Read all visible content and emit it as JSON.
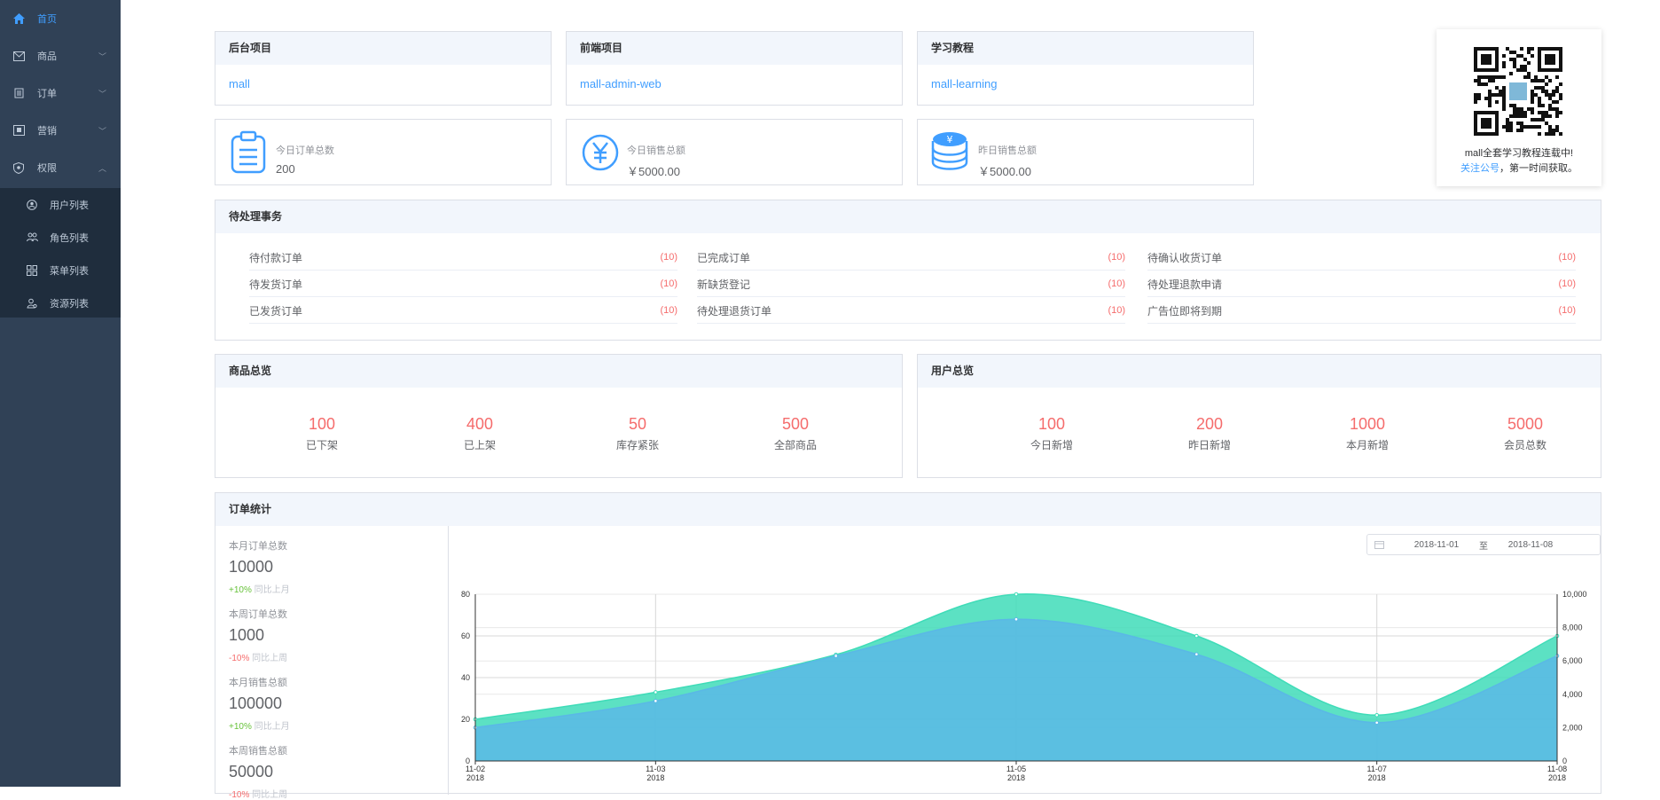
{
  "sidebar": {
    "items": [
      {
        "label": "首页",
        "icon": "home-icon",
        "active": true
      },
      {
        "label": "商品",
        "icon": "product-icon",
        "expanded": false
      },
      {
        "label": "订单",
        "icon": "order-icon",
        "expanded": false
      },
      {
        "label": "营销",
        "icon": "marketing-icon",
        "expanded": false
      },
      {
        "label": "权限",
        "icon": "permission-icon",
        "expanded": true
      }
    ],
    "sub_items": [
      {
        "label": "用户列表",
        "icon": "user-icon"
      },
      {
        "label": "角色列表",
        "icon": "role-icon"
      },
      {
        "label": "菜单列表",
        "icon": "menu-icon"
      },
      {
        "label": "资源列表",
        "icon": "resource-icon"
      }
    ]
  },
  "projects": [
    {
      "title": "后台项目",
      "link": "mall"
    },
    {
      "title": "前端项目",
      "link": "mall-admin-web"
    },
    {
      "title": "学习教程",
      "link": "mall-learning"
    }
  ],
  "stats": [
    {
      "label": "今日订单总数",
      "value": "200",
      "icon": "clipboard-icon"
    },
    {
      "label": "今日销售总额",
      "value": "￥5000.00",
      "icon": "yuan-icon"
    },
    {
      "label": "昨日销售总额",
      "value": "￥5000.00",
      "icon": "coins-icon"
    }
  ],
  "qr": {
    "line1": "mall全套学习教程连载中!",
    "link_text": "关注公号",
    "line2_rest": "，第一时间获取。"
  },
  "todo": {
    "title": "待处理事务",
    "columns": [
      [
        {
          "label": "待付款订单",
          "count": "(10)"
        },
        {
          "label": "待发货订单",
          "count": "(10)"
        },
        {
          "label": "已发货订单",
          "count": "(10)"
        }
      ],
      [
        {
          "label": "已完成订单",
          "count": "(10)"
        },
        {
          "label": "新缺货登记",
          "count": "(10)"
        },
        {
          "label": "待处理退货订单",
          "count": "(10)"
        }
      ],
      [
        {
          "label": "待确认收货订单",
          "count": "(10)"
        },
        {
          "label": "待处理退款申请",
          "count": "(10)"
        },
        {
          "label": "广告位即将到期",
          "count": "(10)"
        }
      ]
    ]
  },
  "product_overview": {
    "title": "商品总览",
    "items": [
      {
        "value": "100",
        "label": "已下架"
      },
      {
        "value": "400",
        "label": "已上架"
      },
      {
        "value": "50",
        "label": "库存紧张"
      },
      {
        "value": "500",
        "label": "全部商品"
      }
    ]
  },
  "user_overview": {
    "title": "用户总览",
    "items": [
      {
        "value": "100",
        "label": "今日新增"
      },
      {
        "value": "200",
        "label": "昨日新增"
      },
      {
        "value": "1000",
        "label": "本月新增"
      },
      {
        "value": "5000",
        "label": "会员总数"
      }
    ]
  },
  "order_stats": {
    "title": "订单统计",
    "items": [
      {
        "label": "本月订单总数",
        "value": "10000",
        "change": "+10%",
        "compare": "同比上月",
        "trend": "up"
      },
      {
        "label": "本周订单总数",
        "value": "1000",
        "change": "-10%",
        "compare": "同比上周",
        "trend": "down"
      },
      {
        "label": "本月销售总额",
        "value": "100000",
        "change": "+10%",
        "compare": "同比上月",
        "trend": "up"
      },
      {
        "label": "本周销售总额",
        "value": "50000",
        "change": "-10%",
        "compare": "同比上周",
        "trend": "down"
      }
    ],
    "date_from": "2018-11-01",
    "date_sep": "至",
    "date_to": "2018-11-08"
  },
  "chart_data": {
    "type": "area",
    "x": [
      "2018-11-02",
      "2018-11-03",
      "2018-11-04",
      "2018-11-05",
      "2018-11-06",
      "2018-11-07",
      "2018-11-08"
    ],
    "x_tick_labels": [
      {
        "x": "2018-11-02",
        "line1": "11-02",
        "line2": "2018"
      },
      {
        "x": "2018-11-03",
        "line1": "11-03",
        "line2": "2018"
      },
      {
        "x": "2018-11-05",
        "line1": "11-05",
        "line2": "2018"
      },
      {
        "x": "2018-11-07",
        "line1": "11-07",
        "line2": "2018"
      },
      {
        "x": "2018-11-08",
        "line1": "11-08",
        "line2": "2018"
      }
    ],
    "series": [
      {
        "axis": "left",
        "values": [
          20,
          33,
          51,
          80,
          60,
          22,
          60
        ],
        "color": "#3fdcb8"
      },
      {
        "axis": "right",
        "values": [
          2000,
          3600,
          6300,
          8500,
          6400,
          2300,
          6300
        ],
        "color": "#5ab8e6"
      }
    ],
    "ylim_left": [
      0,
      80
    ],
    "yticks_left": [
      "0",
      "20",
      "40",
      "60",
      "80"
    ],
    "ylim_right": [
      0,
      10000
    ],
    "yticks_right": [
      "0",
      "2,000",
      "4,000",
      "6,000",
      "8,000",
      "10,000"
    ],
    "grid": true
  }
}
